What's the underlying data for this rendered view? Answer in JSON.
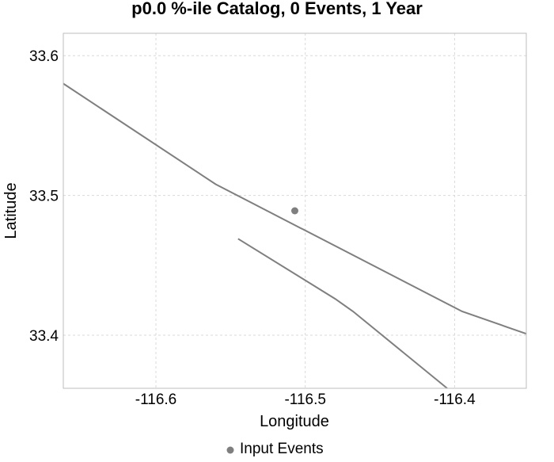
{
  "chart_data": {
    "type": "scatter",
    "title": "p0.0 %-ile Catalog, 0 Events, 1 Year",
    "xlabel": "Longitude",
    "ylabel": "Latitude",
    "xlim": [
      -116.662,
      -116.352
    ],
    "ylim": [
      33.362,
      33.616
    ],
    "x_ticks": [
      -116.6,
      -116.5,
      -116.4
    ],
    "x_tick_labels": [
      "-116.6",
      "-116.5",
      "-116.4"
    ],
    "y_ticks": [
      33.4,
      33.5,
      33.6
    ],
    "y_tick_labels": [
      "33.4",
      "33.5",
      "33.6"
    ],
    "grid": true,
    "legend_position": "bottom-center",
    "colors": {
      "fault_line": "#7f7f7f",
      "event_marker": "#7f7f7f",
      "grid": "#d9d9d9",
      "frame": "#bdbdbd"
    },
    "series": [
      {
        "name": "Input Events",
        "kind": "points",
        "points": [
          {
            "x": -116.507,
            "y": 33.489
          }
        ]
      }
    ],
    "fault_traces": [
      {
        "points": [
          {
            "x": -116.662,
            "y": 33.58
          },
          {
            "x": -116.56,
            "y": 33.508
          },
          {
            "x": -116.395,
            "y": 33.417
          },
          {
            "x": -116.352,
            "y": 33.401
          }
        ]
      },
      {
        "points": [
          {
            "x": -116.545,
            "y": 33.469
          },
          {
            "x": -116.48,
            "y": 33.426
          },
          {
            "x": -116.468,
            "y": 33.417
          },
          {
            "x": -116.405,
            "y": 33.362
          }
        ]
      }
    ]
  }
}
